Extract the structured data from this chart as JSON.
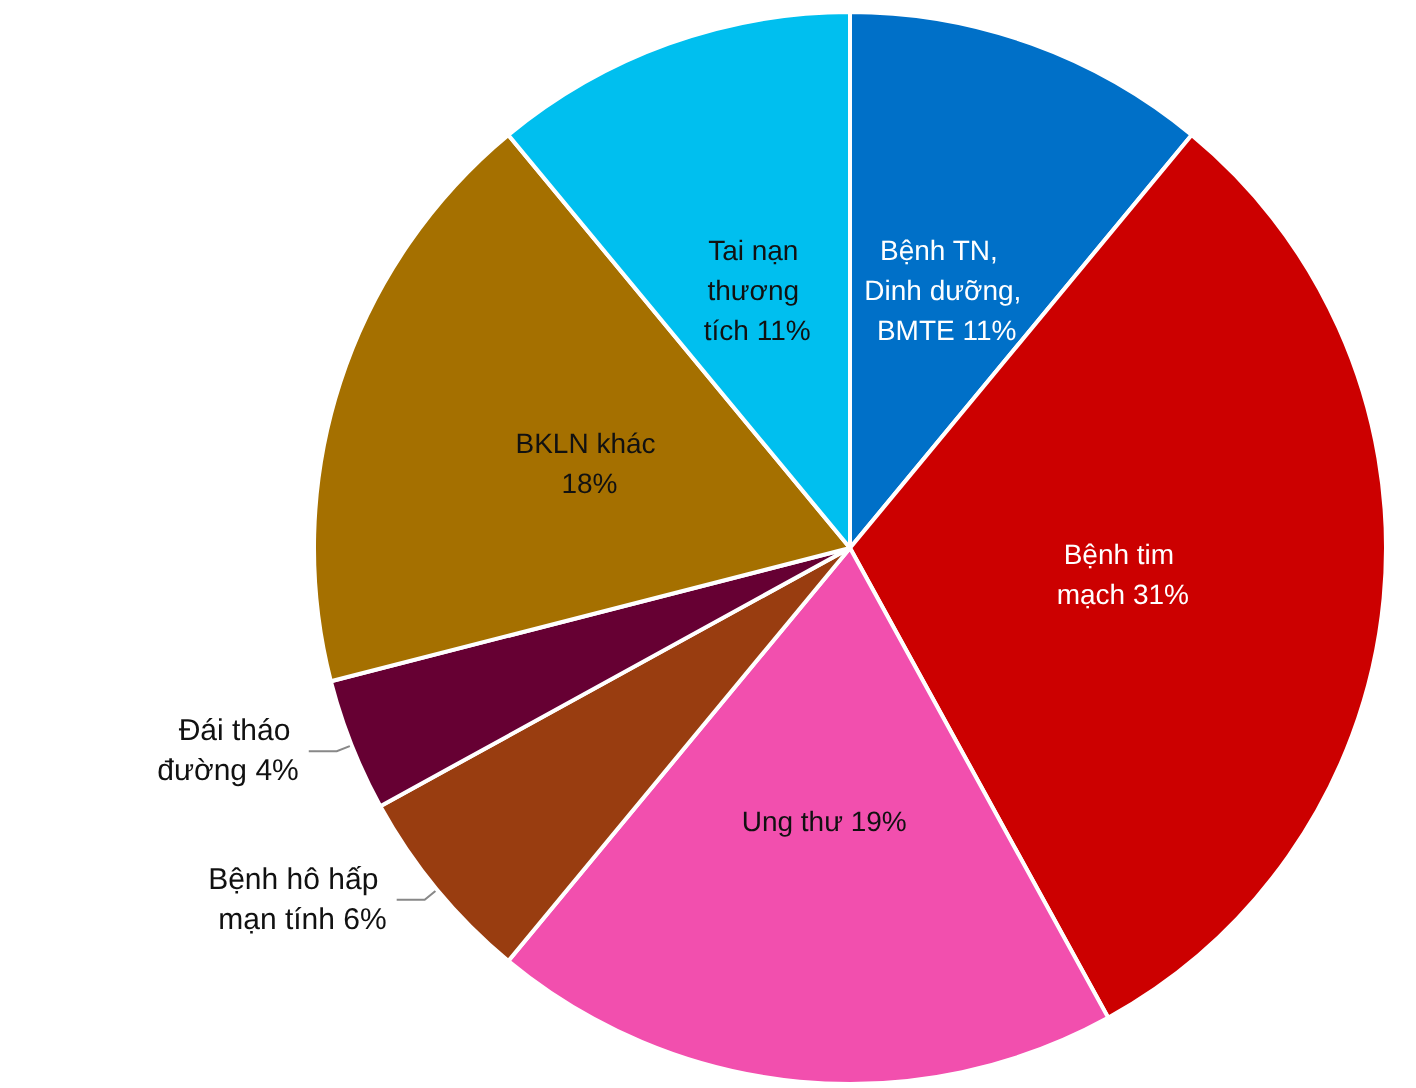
{
  "chart_data": {
    "type": "pie",
    "categories": [
      "Bệnh TN, Dinh dưỡng, BMTE",
      "Bệnh tim mạch",
      "Ung thư",
      "Bệnh hô hấp mạn tính",
      "Đái tháo đường",
      "BKLN khác",
      "Tai nạn thương tích"
    ],
    "values": [
      11,
      31,
      19,
      6,
      4,
      18,
      11
    ],
    "colors": [
      "#0070c8",
      "#cc0000",
      "#f24fae",
      "#993d10",
      "#660033",
      "#a57000",
      "#00bfef"
    ],
    "value_labels": [
      "11%",
      "31%",
      "19%",
      "6%",
      "4%",
      "18%",
      "11%"
    ]
  }
}
